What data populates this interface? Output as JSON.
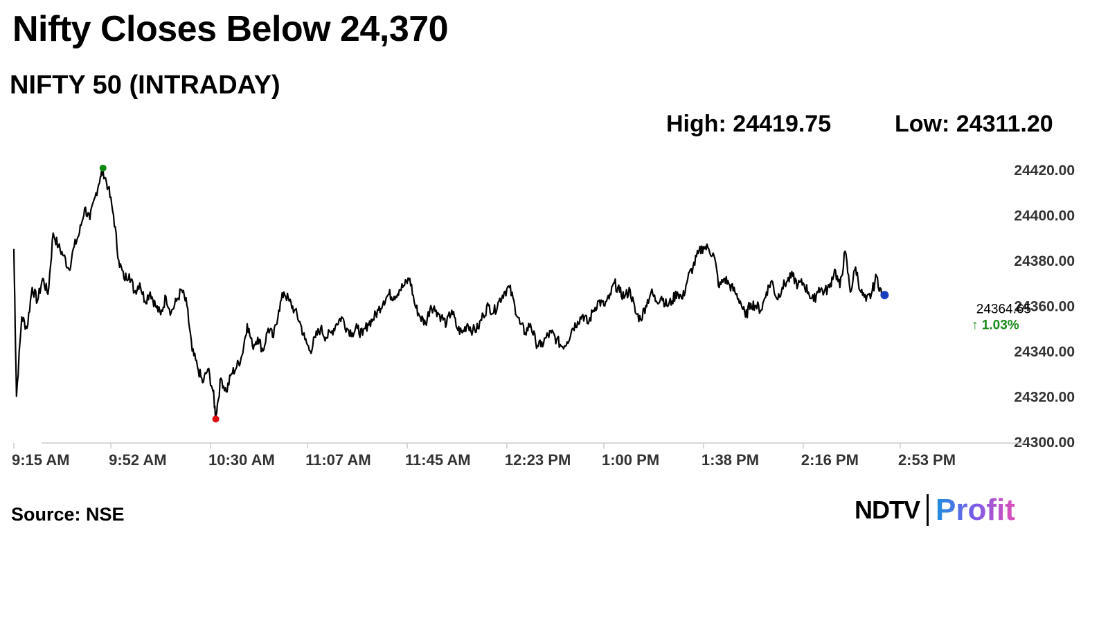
{
  "header": {
    "headline": "Nifty Closes Below 24,370",
    "subhead": "NIFTY 50 (INTRADAY)",
    "high_label": "High: 24419.75",
    "low_label": "Low: 24311.20"
  },
  "footer": {
    "source": "Source: NSE",
    "logo_ndtv": "NDTV",
    "logo_profit": "Profit"
  },
  "colors": {
    "line": "#000000",
    "high_marker": "#118811",
    "low_marker": "#e01010",
    "last_marker": "#1a3fbf",
    "change_text": "#1a8a1a",
    "axis": "#cccccc"
  },
  "chart_data": {
    "type": "line",
    "title": "NIFTY 50 (INTRADAY)",
    "ylim": [
      24300,
      24420
    ],
    "y_ticks": [
      "24420.00",
      "24400.00",
      "24380.00",
      "24360.00",
      "24340.00",
      "24320.00",
      "24300.00"
    ],
    "y_tick_values": [
      24420,
      24400,
      24380,
      24360,
      24340,
      24320,
      24300
    ],
    "x_ticks": [
      "9:15 AM",
      "9:52 AM",
      "10:30 AM",
      "11:07 AM",
      "11:45 AM",
      "12:23 PM",
      "1:00 PM",
      "1:38 PM",
      "2:16 PM",
      "2:53 PM"
    ],
    "x_range": [
      "9:15 AM",
      "3:30 PM"
    ],
    "high": 24419.75,
    "low": 24311.2,
    "last": "24364.65",
    "change": "↑ 1.03%",
    "grid": false,
    "series": [
      {
        "points": [
          [
            "9:15 AM",
            24385
          ],
          [
            "9:16 AM",
            24320
          ],
          [
            "9:18 AM",
            24355
          ],
          [
            "9:20 AM",
            24350
          ],
          [
            "9:22 AM",
            24368
          ],
          [
            "9:24 AM",
            24362
          ],
          [
            "9:26 AM",
            24372
          ],
          [
            "9:28 AM",
            24365
          ],
          [
            "9:30 AM",
            24392
          ],
          [
            "9:32 AM",
            24386
          ],
          [
            "9:34 AM",
            24382
          ],
          [
            "9:36 AM",
            24376
          ],
          [
            "9:38 AM",
            24386
          ],
          [
            "9:40 AM",
            24392
          ],
          [
            "9:42 AM",
            24403
          ],
          [
            "9:44 AM",
            24398
          ],
          [
            "9:46 AM",
            24408
          ],
          [
            "9:48 AM",
            24417
          ],
          [
            "9:49 AM",
            24419.75
          ],
          [
            "9:51 AM",
            24412
          ],
          [
            "9:53 AM",
            24400
          ],
          [
            "9:55 AM",
            24380
          ],
          [
            "9:57 AM",
            24372
          ],
          [
            "9:59 AM",
            24374
          ],
          [
            "10:01 AM",
            24366
          ],
          [
            "10:03 AM",
            24370
          ],
          [
            "10:05 AM",
            24362
          ],
          [
            "10:07 AM",
            24366
          ],
          [
            "10:09 AM",
            24360
          ],
          [
            "10:11 AM",
            24356
          ],
          [
            "10:13 AM",
            24364
          ],
          [
            "10:15 AM",
            24357
          ],
          [
            "10:17 AM",
            24362
          ],
          [
            "10:19 AM",
            24367
          ],
          [
            "10:21 AM",
            24360
          ],
          [
            "10:23 AM",
            24340
          ],
          [
            "10:25 AM",
            24333
          ],
          [
            "10:27 AM",
            24326
          ],
          [
            "10:29 AM",
            24332
          ],
          [
            "10:31 AM",
            24322
          ],
          [
            "10:32 AM",
            24311.2
          ],
          [
            "10:34 AM",
            24328
          ],
          [
            "10:36 AM",
            24322
          ],
          [
            "10:38 AM",
            24330
          ],
          [
            "10:40 AM",
            24333
          ],
          [
            "10:42 AM",
            24338
          ],
          [
            "10:44 AM",
            24352
          ],
          [
            "10:46 AM",
            24342
          ],
          [
            "10:48 AM",
            24346
          ],
          [
            "10:50 AM",
            24340
          ],
          [
            "10:52 AM",
            24350
          ],
          [
            "10:54 AM",
            24346
          ],
          [
            "10:56 AM",
            24358
          ],
          [
            "10:58 AM",
            24366
          ],
          [
            "11:00 AM",
            24362
          ],
          [
            "11:02 AM",
            24358
          ],
          [
            "11:04 AM",
            24353
          ],
          [
            "11:06 AM",
            24345
          ],
          [
            "11:08 AM",
            24340
          ],
          [
            "11:10 AM",
            24346
          ],
          [
            "11:12 AM",
            24350
          ],
          [
            "11:14 AM",
            24346
          ],
          [
            "11:16 AM",
            24348
          ],
          [
            "11:18 AM",
            24352
          ],
          [
            "11:20 AM",
            24355
          ],
          [
            "11:22 AM",
            24350
          ],
          [
            "11:24 AM",
            24348
          ],
          [
            "11:26 AM",
            24350
          ],
          [
            "11:28 AM",
            24347
          ],
          [
            "11:30 AM",
            24352
          ],
          [
            "11:32 AM",
            24354
          ],
          [
            "11:34 AM",
            24358
          ],
          [
            "11:36 AM",
            24362
          ],
          [
            "11:38 AM",
            24365
          ],
          [
            "11:40 AM",
            24364
          ],
          [
            "11:42 AM",
            24367
          ],
          [
            "11:44 AM",
            24369
          ],
          [
            "11:46 AM",
            24372
          ],
          [
            "11:48 AM",
            24360
          ],
          [
            "11:50 AM",
            24355
          ],
          [
            "11:52 AM",
            24352
          ],
          [
            "11:54 AM",
            24360
          ],
          [
            "11:56 AM",
            24358
          ],
          [
            "11:58 AM",
            24355
          ],
          [
            "12:00 PM",
            24352
          ],
          [
            "12:02 PM",
            24358
          ],
          [
            "12:04 PM",
            24350
          ],
          [
            "12:06 PM",
            24348
          ],
          [
            "12:08 PM",
            24352
          ],
          [
            "12:10 PM",
            24349
          ],
          [
            "12:12 PM",
            24350
          ],
          [
            "12:14 PM",
            24356
          ],
          [
            "12:16 PM",
            24360
          ],
          [
            "12:18 PM",
            24357
          ],
          [
            "12:20 PM",
            24362
          ],
          [
            "12:22 PM",
            24366
          ],
          [
            "12:24 PM",
            24368
          ],
          [
            "12:26 PM",
            24360
          ],
          [
            "12:28 PM",
            24352
          ],
          [
            "12:30 PM",
            24348
          ],
          [
            "12:32 PM",
            24352
          ],
          [
            "12:34 PM",
            24344
          ],
          [
            "12:36 PM",
            24342
          ],
          [
            "12:38 PM",
            24346
          ],
          [
            "12:40 PM",
            24348
          ],
          [
            "12:42 PM",
            24345
          ],
          [
            "12:44 PM",
            24342
          ],
          [
            "12:46 PM",
            24344
          ],
          [
            "12:48 PM",
            24350
          ],
          [
            "12:50 PM",
            24353
          ],
          [
            "12:52 PM",
            24356
          ],
          [
            "12:54 PM",
            24352
          ],
          [
            "12:56 PM",
            24358
          ],
          [
            "12:58 PM",
            24362
          ],
          [
            "1:00 PM",
            24360
          ],
          [
            "1:02 PM",
            24363
          ],
          [
            "1:04 PM",
            24370
          ],
          [
            "1:06 PM",
            24366
          ],
          [
            "1:08 PM",
            24364
          ],
          [
            "1:10 PM",
            24367
          ],
          [
            "1:12 PM",
            24357
          ],
          [
            "1:14 PM",
            24354
          ],
          [
            "1:16 PM",
            24360
          ],
          [
            "1:18 PM",
            24366
          ],
          [
            "1:20 PM",
            24362
          ],
          [
            "1:22 PM",
            24364
          ],
          [
            "1:24 PM",
            24360
          ],
          [
            "1:26 PM",
            24362
          ],
          [
            "1:28 PM",
            24366
          ],
          [
            "1:30 PM",
            24363
          ],
          [
            "1:32 PM",
            24372
          ],
          [
            "1:34 PM",
            24377
          ],
          [
            "1:36 PM",
            24383
          ],
          [
            "1:38 PM",
            24386
          ],
          [
            "1:40 PM",
            24385
          ],
          [
            "1:42 PM",
            24382
          ],
          [
            "1:44 PM",
            24368
          ],
          [
            "1:46 PM",
            24372
          ],
          [
            "1:48 PM",
            24369
          ],
          [
            "1:50 PM",
            24366
          ],
          [
            "1:52 PM",
            24362
          ],
          [
            "1:54 PM",
            24355
          ],
          [
            "1:56 PM",
            24361
          ],
          [
            "1:58 PM",
            24360
          ],
          [
            "2:00 PM",
            24358
          ],
          [
            "2:02 PM",
            24366
          ],
          [
            "2:04 PM",
            24371
          ],
          [
            "2:06 PM",
            24363
          ],
          [
            "2:08 PM",
            24368
          ],
          [
            "2:10 PM",
            24371
          ],
          [
            "2:12 PM",
            24373
          ],
          [
            "2:14 PM",
            24369
          ],
          [
            "2:16 PM",
            24370
          ],
          [
            "2:18 PM",
            24366
          ],
          [
            "2:20 PM",
            24362
          ],
          [
            "2:22 PM",
            24368
          ],
          [
            "2:24 PM",
            24366
          ],
          [
            "2:26 PM",
            24368
          ],
          [
            "2:28 PM",
            24376
          ],
          [
            "2:30 PM",
            24368
          ],
          [
            "2:32 PM",
            24384
          ],
          [
            "2:34 PM",
            24366
          ],
          [
            "2:36 PM",
            24377
          ],
          [
            "2:38 PM",
            24366
          ],
          [
            "2:40 PM",
            24362
          ],
          [
            "2:42 PM",
            24365
          ],
          [
            "2:44 PM",
            24373
          ],
          [
            "2:46 PM",
            24364.65
          ]
        ]
      }
    ]
  }
}
